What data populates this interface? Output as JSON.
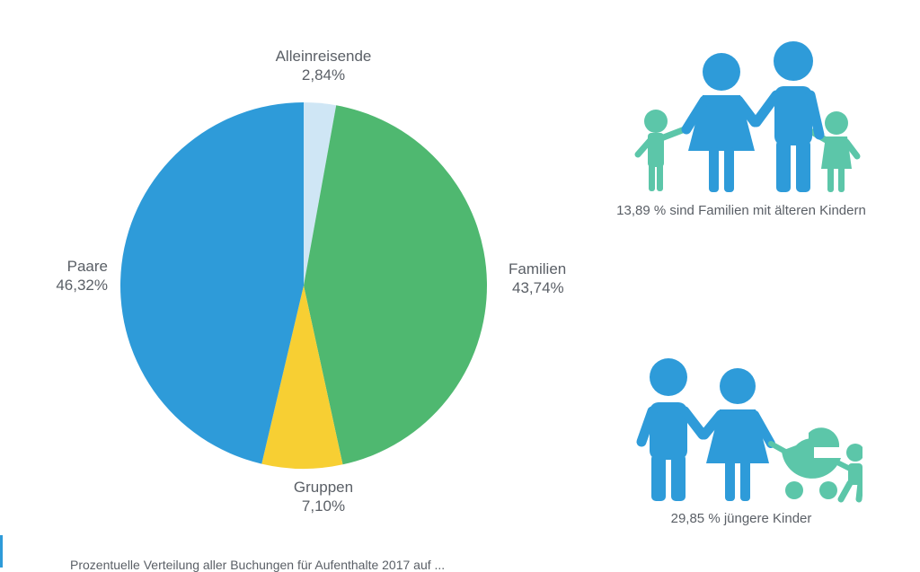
{
  "chart_data": {
    "type": "pie",
    "title": "",
    "start_angle_deg": 0,
    "direction": "clockwise",
    "slices": [
      {
        "label": "Alleinreisende",
        "value": 2.84,
        "value_text": "2,84%",
        "color": "#cfe6f5"
      },
      {
        "label": "Familien",
        "value": 43.74,
        "value_text": "43,74%",
        "color": "#4fb870"
      },
      {
        "label": "Gruppen",
        "value": 7.1,
        "value_text": "7,10%",
        "color": "#f7cf33"
      },
      {
        "label": "Paare",
        "value": 46.32,
        "value_text": "46,32%",
        "color": "#2e9bd9"
      }
    ]
  },
  "info": {
    "older_kids": "13,89 % sind Familien mit älteren Kindern",
    "younger_kids": "29,85 % jüngere Kinder"
  },
  "colors": {
    "adult": "#2e9bd9",
    "child": "#5cc6a9"
  },
  "footnote": "Prozentuelle Verteilung aller Buchungen für Aufenthalte 2017 auf ..."
}
